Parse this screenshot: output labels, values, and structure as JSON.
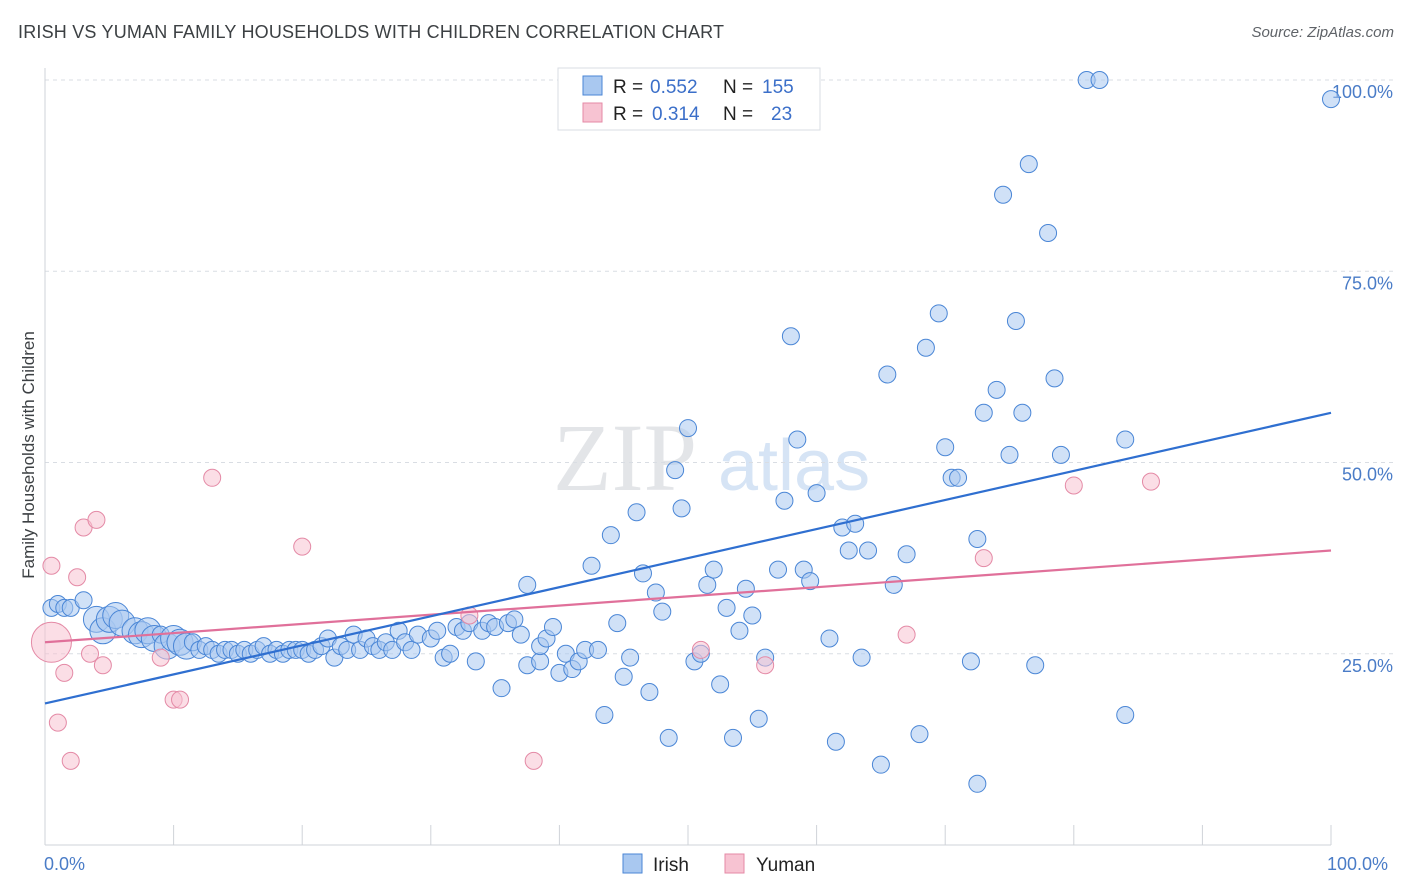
{
  "title": "IRISH VS YUMAN FAMILY HOUSEHOLDS WITH CHILDREN CORRELATION CHART",
  "source": "Source: ZipAtlas.com",
  "watermark": {
    "zip": "ZIP",
    "atlas": "atlas"
  },
  "colors": {
    "irish_fill": "#a9c8f0",
    "irish_stroke": "#4a86d6",
    "irish_line": "#2f6fd0",
    "yuman_fill": "#f7c3d2",
    "yuman_stroke": "#e48aa6",
    "yuman_line": "#e0709a",
    "grid": "#d9dde3",
    "tick_text": "#4a7cc7"
  },
  "legend_top": {
    "rows": [
      {
        "r_label": "R =",
        "r_value": "0.552",
        "n_label": "N =",
        "n_value": "155"
      },
      {
        "r_label": "R =",
        "r_value": "0.314",
        "n_label": "N =",
        "n_value": "23"
      }
    ]
  },
  "legend_bottom": {
    "items": [
      "Irish",
      "Yuman"
    ]
  },
  "chart_data": {
    "type": "scatter",
    "title": "IRISH VS YUMAN FAMILY HOUSEHOLDS WITH CHILDREN CORRELATION CHART",
    "xlabel": "",
    "ylabel": "Family Households with Children",
    "xlim": [
      0,
      100
    ],
    "ylim": [
      0,
      100
    ],
    "x_tick_labels": [
      "0.0%",
      "100.0%"
    ],
    "y_ticks": [
      25,
      50,
      75,
      100
    ],
    "y_tick_labels": [
      "25.0%",
      "50.0%",
      "75.0%",
      "100.0%"
    ],
    "grid": "horizontal dashed",
    "series": [
      {
        "name": "Irish",
        "r": 0.552,
        "n": 155,
        "trend": {
          "x": [
            0,
            100
          ],
          "y": [
            18.5,
            56.5
          ]
        },
        "points": [
          [
            0.5,
            31,
            1
          ],
          [
            1,
            31.5,
            1
          ],
          [
            1.5,
            31,
            1
          ],
          [
            2,
            31,
            1
          ],
          [
            3,
            32,
            1
          ],
          [
            4,
            29.5,
            2
          ],
          [
            4.5,
            28,
            2
          ],
          [
            5,
            29.5,
            2
          ],
          [
            5.5,
            30,
            2
          ],
          [
            6,
            29,
            2
          ],
          [
            7,
            28,
            2
          ],
          [
            7.5,
            27.5,
            2
          ],
          [
            8,
            28,
            2
          ],
          [
            8.5,
            27,
            2
          ],
          [
            9,
            27.5,
            1
          ],
          [
            9.5,
            26,
            2
          ],
          [
            10,
            27,
            2
          ],
          [
            10.5,
            26.5,
            2
          ],
          [
            11,
            26,
            2
          ],
          [
            11.5,
            26.5,
            1
          ],
          [
            12,
            25.5,
            1
          ],
          [
            12.5,
            26,
            1
          ],
          [
            13,
            25.5,
            1
          ],
          [
            13.5,
            25,
            1
          ],
          [
            14,
            25.5,
            1
          ],
          [
            14.5,
            25.5,
            1
          ],
          [
            15,
            25,
            1
          ],
          [
            15.5,
            25.5,
            1
          ],
          [
            16,
            25,
            1
          ],
          [
            16.5,
            25.5,
            1
          ],
          [
            17,
            26,
            1
          ],
          [
            17.5,
            25,
            1
          ],
          [
            18,
            25.5,
            1
          ],
          [
            18.5,
            25,
            1
          ],
          [
            19,
            25.5,
            1
          ],
          [
            19.5,
            25.5,
            1
          ],
          [
            20,
            25.5,
            1
          ],
          [
            20.5,
            25,
            1
          ],
          [
            21,
            25.5,
            1
          ],
          [
            21.5,
            26,
            1
          ],
          [
            22,
            27,
            1
          ],
          [
            22.5,
            24.5,
            1
          ],
          [
            23,
            26,
            1
          ],
          [
            23.5,
            25.5,
            1
          ],
          [
            24,
            27.5,
            1
          ],
          [
            24.5,
            25.5,
            1
          ],
          [
            25,
            27,
            1
          ],
          [
            25.5,
            26,
            1
          ],
          [
            26,
            25.5,
            1
          ],
          [
            26.5,
            26.5,
            1
          ],
          [
            27,
            25.5,
            1
          ],
          [
            27.5,
            28,
            1
          ],
          [
            28,
            26.5,
            1
          ],
          [
            28.5,
            25.5,
            1
          ],
          [
            29,
            27.5,
            1
          ],
          [
            30,
            27,
            1
          ],
          [
            30.5,
            28,
            1
          ],
          [
            31,
            24.5,
            1
          ],
          [
            31.5,
            25,
            1
          ],
          [
            32,
            28.5,
            1
          ],
          [
            32.5,
            28,
            1
          ],
          [
            33,
            29,
            1
          ],
          [
            33.5,
            24,
            1
          ],
          [
            34,
            28,
            1
          ],
          [
            34.5,
            29,
            1
          ],
          [
            35,
            28.5,
            1
          ],
          [
            35.5,
            20.5,
            1
          ],
          [
            36,
            29,
            1
          ],
          [
            36.5,
            29.5,
            1
          ],
          [
            37,
            27.5,
            1
          ],
          [
            37.5,
            23.5,
            1
          ],
          [
            37.5,
            34,
            1
          ],
          [
            38.5,
            24,
            1
          ],
          [
            38.5,
            26,
            1
          ],
          [
            39,
            27,
            1
          ],
          [
            39.5,
            28.5,
            1
          ],
          [
            40,
            22.5,
            1
          ],
          [
            40.5,
            25,
            1
          ],
          [
            41,
            23,
            1
          ],
          [
            41.5,
            24,
            1
          ],
          [
            42,
            25.5,
            1
          ],
          [
            42.5,
            36.5,
            1
          ],
          [
            43,
            25.5,
            1
          ],
          [
            43.5,
            17,
            1
          ],
          [
            44,
            40.5,
            1
          ],
          [
            44.5,
            29,
            1
          ],
          [
            45,
            22,
            1
          ],
          [
            45.5,
            24.5,
            1
          ],
          [
            46,
            43.5,
            1
          ],
          [
            46.5,
            35.5,
            1
          ],
          [
            47,
            20,
            1
          ],
          [
            47.5,
            33,
            1
          ],
          [
            48,
            30.5,
            1
          ],
          [
            48.5,
            14,
            1
          ],
          [
            49,
            49,
            1
          ],
          [
            49.5,
            44,
            1
          ],
          [
            50,
            54.5,
            1
          ],
          [
            50.5,
            24,
            1
          ],
          [
            51,
            25,
            1
          ],
          [
            51.5,
            34,
            1
          ],
          [
            52,
            36,
            1
          ],
          [
            52.5,
            21,
            1
          ],
          [
            53,
            31,
            1
          ],
          [
            53.5,
            14,
            1
          ],
          [
            54,
            28,
            1
          ],
          [
            54.5,
            33.5,
            1
          ],
          [
            55,
            30,
            1
          ],
          [
            55.5,
            16.5,
            1
          ],
          [
            56,
            24.5,
            1
          ],
          [
            57,
            36,
            1
          ],
          [
            57.5,
            45,
            1
          ],
          [
            58,
            66.5,
            1
          ],
          [
            58.5,
            53,
            1
          ],
          [
            59,
            36,
            1
          ],
          [
            59.5,
            34.5,
            1
          ],
          [
            60,
            46,
            1
          ],
          [
            61,
            27,
            1
          ],
          [
            61.5,
            13.5,
            1
          ],
          [
            62,
            41.5,
            1
          ],
          [
            62.5,
            38.5,
            1
          ],
          [
            63,
            42,
            1
          ],
          [
            63.5,
            24.5,
            1
          ],
          [
            64,
            38.5,
            1
          ],
          [
            65,
            10.5,
            1
          ],
          [
            65.5,
            61.5,
            1
          ],
          [
            66,
            34,
            1
          ],
          [
            67,
            38,
            1
          ],
          [
            68,
            14.5,
            1
          ],
          [
            68.5,
            65,
            1
          ],
          [
            69.5,
            69.5,
            1
          ],
          [
            70,
            52,
            1
          ],
          [
            70.5,
            48,
            1
          ],
          [
            71,
            48,
            1
          ],
          [
            72,
            24,
            1
          ],
          [
            72.5,
            8,
            1
          ],
          [
            72.5,
            40,
            1
          ],
          [
            73,
            56.5,
            1
          ],
          [
            74,
            59.5,
            1
          ],
          [
            74.5,
            85,
            1
          ],
          [
            75,
            51,
            1
          ],
          [
            75.5,
            68.5,
            1
          ],
          [
            76,
            56.5,
            1
          ],
          [
            76.5,
            89,
            1
          ],
          [
            77,
            23.5,
            1
          ],
          [
            78,
            80,
            1
          ],
          [
            78.5,
            61,
            1
          ],
          [
            79,
            51,
            1
          ],
          [
            81,
            100,
            1
          ],
          [
            82,
            100,
            1
          ],
          [
            84,
            53,
            1
          ],
          [
            84,
            17,
            1
          ],
          [
            100,
            97.5,
            1
          ]
        ]
      },
      {
        "name": "Yuman",
        "r": 0.314,
        "n": 23,
        "trend": {
          "x": [
            0,
            100
          ],
          "y": [
            26.5,
            38.5
          ]
        },
        "points": [
          [
            0.5,
            26.5,
            3
          ],
          [
            0.5,
            36.5,
            1
          ],
          [
            1,
            16,
            1
          ],
          [
            1.5,
            22.5,
            1
          ],
          [
            2,
            11,
            1
          ],
          [
            2.5,
            35,
            1
          ],
          [
            3,
            41.5,
            1
          ],
          [
            3.5,
            25,
            1
          ],
          [
            4,
            42.5,
            1
          ],
          [
            4.5,
            23.5,
            1
          ],
          [
            9,
            24.5,
            1
          ],
          [
            10,
            19,
            1
          ],
          [
            10.5,
            19,
            1
          ],
          [
            13,
            48,
            1
          ],
          [
            20,
            39,
            1
          ],
          [
            33,
            30,
            1
          ],
          [
            38,
            11,
            1
          ],
          [
            51,
            25.5,
            1
          ],
          [
            56,
            23.5,
            1
          ],
          [
            67,
            27.5,
            1
          ],
          [
            73,
            37.5,
            1
          ],
          [
            80,
            47,
            1
          ],
          [
            86,
            47.5,
            1
          ]
        ]
      }
    ]
  }
}
